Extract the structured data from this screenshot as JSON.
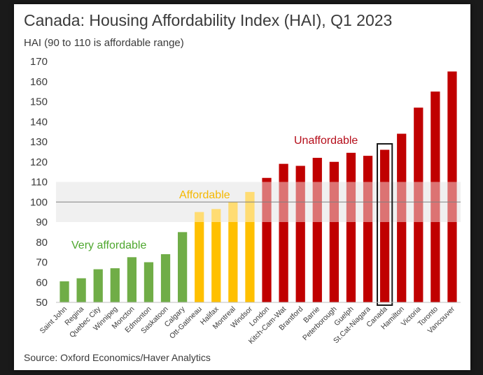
{
  "chart_data": {
    "type": "bar",
    "title": "Canada: Housing Affordability Index (HAI), Q1 2023",
    "ylabel": "HAI (90 to 110 is affordable range)",
    "source": "Source: Oxford Economics/Haver Analytics",
    "ylim": [
      50,
      170
    ],
    "yticks": [
      50,
      60,
      70,
      80,
      90,
      100,
      110,
      120,
      130,
      140,
      150,
      160,
      170
    ],
    "grid": false,
    "affordable_band": [
      90,
      110
    ],
    "reference_line": 100,
    "highlighted_category": "Canada",
    "categories": [
      "Saint John",
      "Regina",
      "Quebec City",
      "Winnipeg",
      "Moncton",
      "Edmonton",
      "Saskatoon",
      "Calgary",
      "Ott-Gatineau",
      "Halifax",
      "Montreal",
      "Windsor",
      "London",
      "Kitch-Cam-Wat",
      "Brantford",
      "Barrie",
      "Peterborough",
      "Guelph",
      "St.Cat-Niagara",
      "Canada",
      "Hamilton",
      "Victoria",
      "Toronto",
      "Vancouver"
    ],
    "values": [
      60.5,
      62,
      66.5,
      67,
      72.5,
      70,
      74,
      85,
      95,
      96.5,
      100,
      105,
      112,
      119,
      118,
      122,
      120,
      124.5,
      123,
      126,
      134,
      147,
      155,
      165
    ],
    "groups": [
      "very",
      "very",
      "very",
      "very",
      "very",
      "very",
      "very",
      "very",
      "aff",
      "aff",
      "aff",
      "aff",
      "unaff",
      "unaff",
      "unaff",
      "unaff",
      "unaff",
      "unaff",
      "unaff",
      "unaff",
      "unaff",
      "unaff",
      "unaff",
      "unaff"
    ],
    "annotations": {
      "very": "Very affordable",
      "aff": "Affordable",
      "unaff": "Unaffordable"
    },
    "colors": {
      "very": "#70ad47",
      "aff": "#ffc000",
      "unaff": "#c00000",
      "band": "#d9d9d9",
      "very_text": "#4ea72e",
      "aff_text": "#f5b800",
      "unaff_text": "#b50d1a"
    }
  }
}
